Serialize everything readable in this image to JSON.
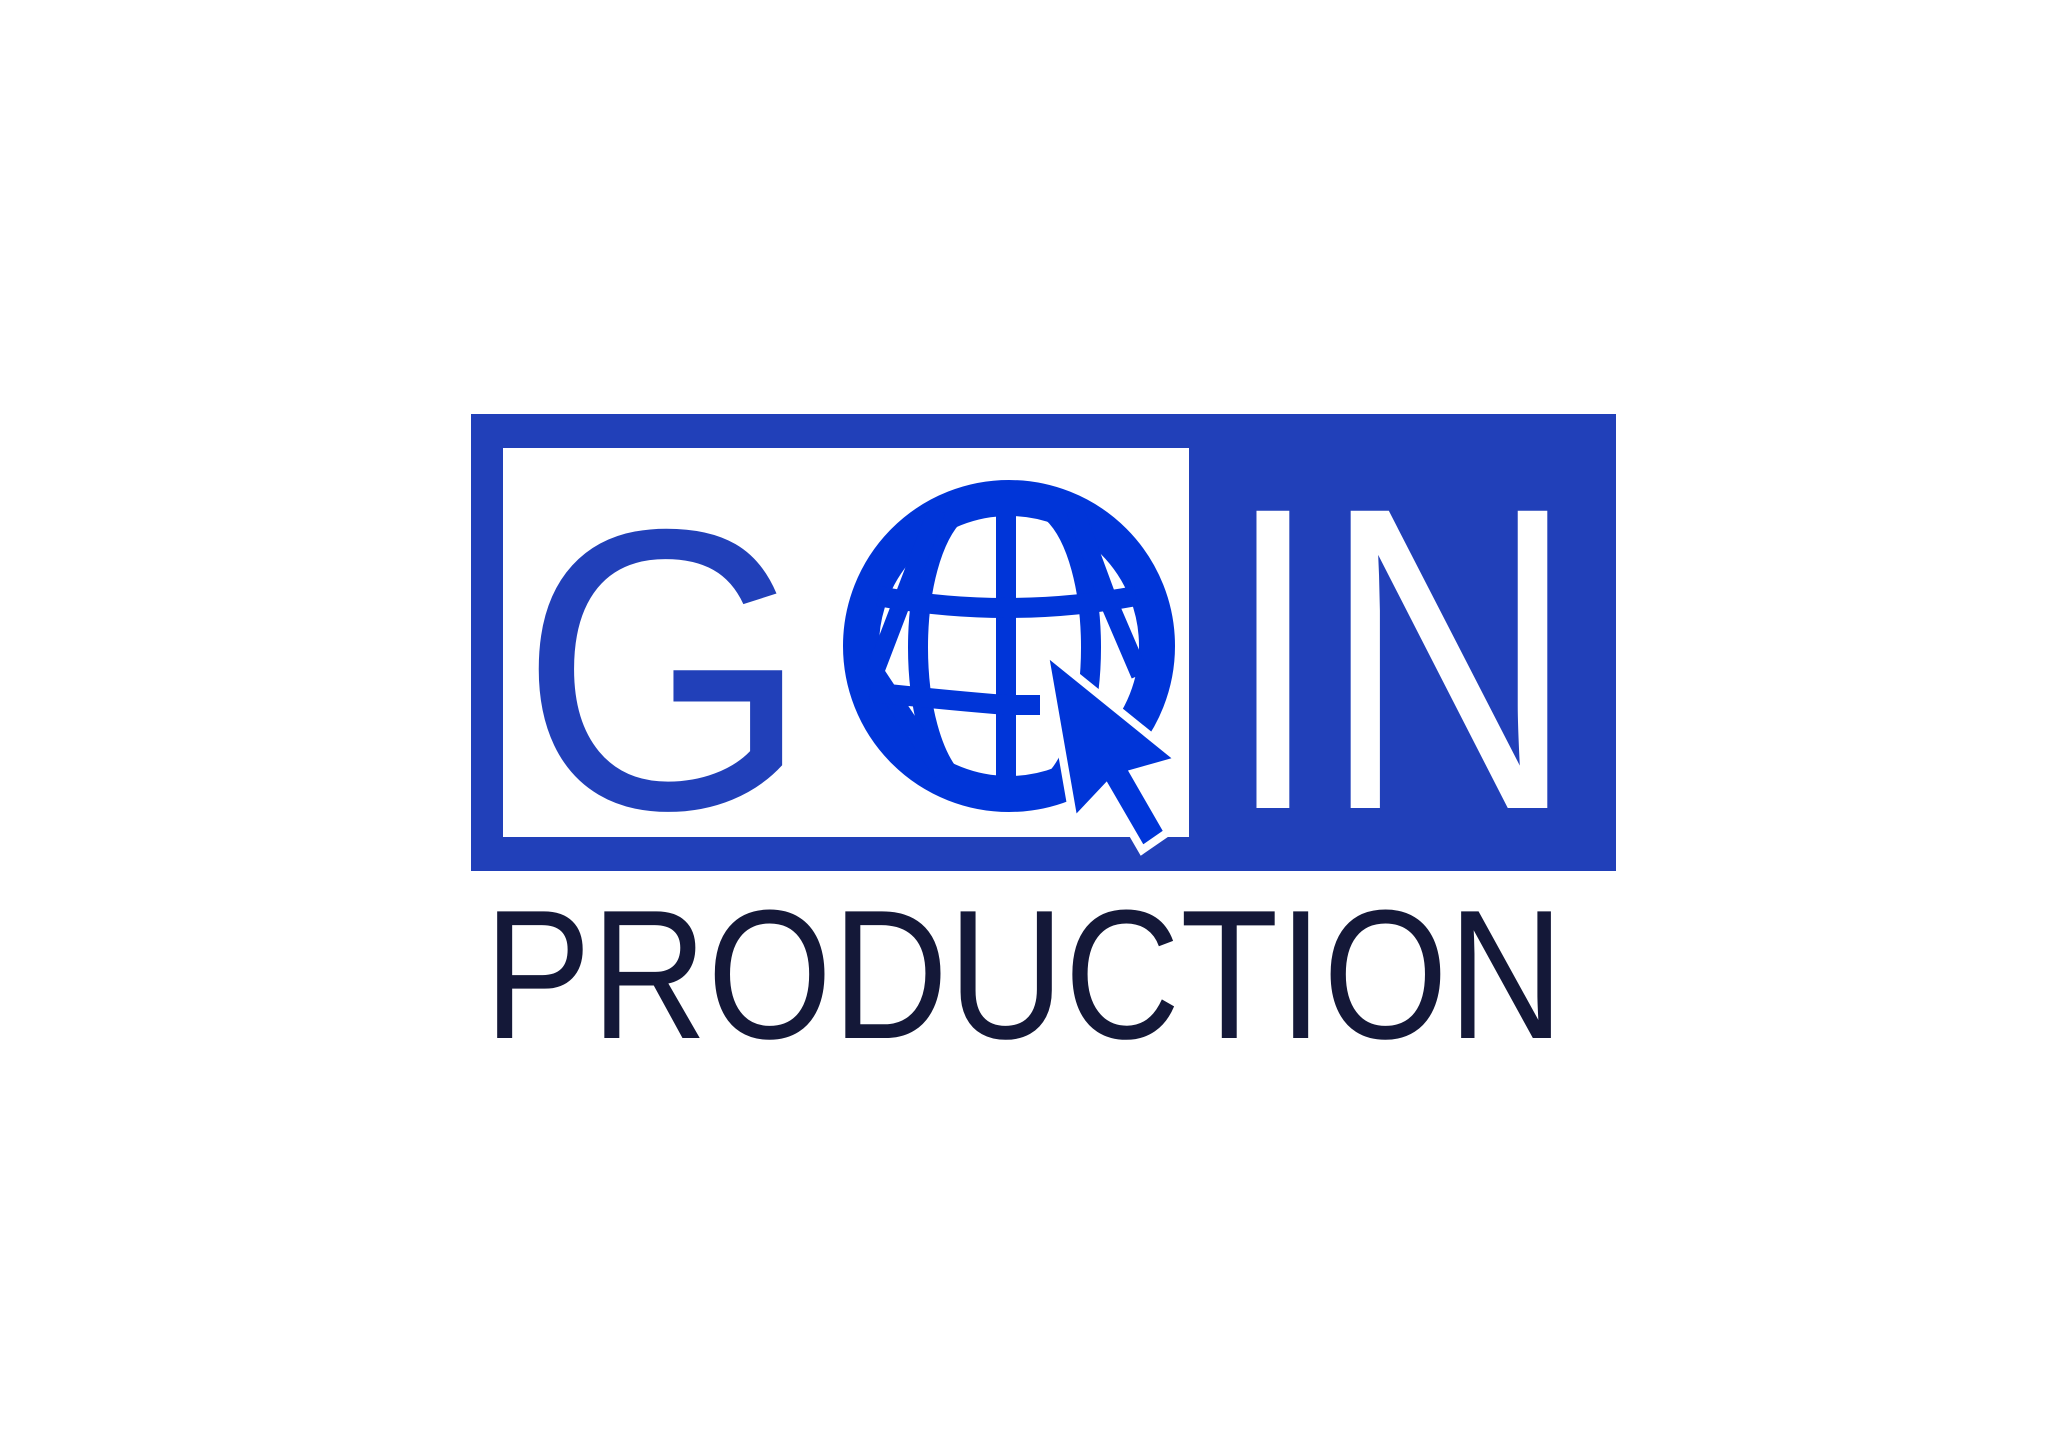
{
  "logo": {
    "letter_g": "G",
    "letters_in": "IN",
    "tagline": "PRODUCTION"
  },
  "colors": {
    "frame_blue": "#2140b9",
    "globe_blue": "#0035d8",
    "tagline_navy": "#141838",
    "background": "#ffffff"
  },
  "icons": {
    "globe": "globe-icon",
    "cursor": "cursor-arrow-icon"
  }
}
